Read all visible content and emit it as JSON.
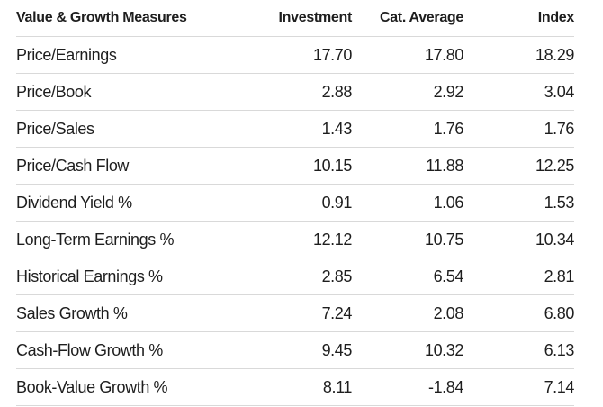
{
  "table": {
    "headers": [
      "Value & Growth Measures",
      "Investment",
      "Cat. Average",
      "Index"
    ],
    "rows": [
      {
        "label": "Price/Earnings",
        "investment": "17.70",
        "cat_average": "17.80",
        "index": "18.29"
      },
      {
        "label": "Price/Book",
        "investment": "2.88",
        "cat_average": "2.92",
        "index": "3.04"
      },
      {
        "label": "Price/Sales",
        "investment": "1.43",
        "cat_average": "1.76",
        "index": "1.76"
      },
      {
        "label": "Price/Cash Flow",
        "investment": "10.15",
        "cat_average": "11.88",
        "index": "12.25"
      },
      {
        "label": "Dividend Yield %",
        "investment": "0.91",
        "cat_average": "1.06",
        "index": "1.53"
      },
      {
        "label": "Long-Term Earnings %",
        "investment": "12.12",
        "cat_average": "10.75",
        "index": "10.34"
      },
      {
        "label": "Historical Earnings %",
        "investment": "2.85",
        "cat_average": "6.54",
        "index": "2.81"
      },
      {
        "label": "Sales Growth %",
        "investment": "7.24",
        "cat_average": "2.08",
        "index": "6.80"
      },
      {
        "label": "Cash-Flow Growth %",
        "investment": "9.45",
        "cat_average": "10.32",
        "index": "6.13"
      },
      {
        "label": "Book-Value Growth %",
        "investment": "8.11",
        "cat_average": "-1.84",
        "index": "7.14"
      }
    ]
  }
}
